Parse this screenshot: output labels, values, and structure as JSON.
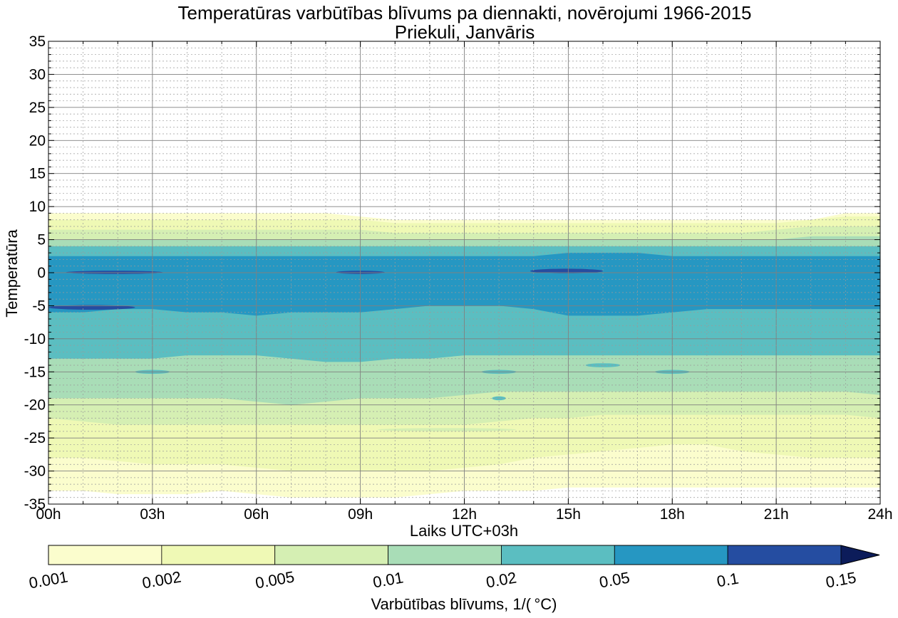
{
  "chart_data": {
    "type": "heatmap",
    "subtype": "filled-contour",
    "title": "Temperatūras varbūtības blīvums pa diennakti, novērojumi 1966-2015",
    "subtitle": "Priekuli, Janvāris",
    "xlabel": "Laiks UTC+03h",
    "ylabel": "Temperatūra",
    "xlim": [
      0,
      24
    ],
    "ylim": [
      -35,
      35
    ],
    "x_tick_labels": [
      "00h",
      "03h",
      "06h",
      "09h",
      "12h",
      "15h",
      "18h",
      "21h",
      "24h"
    ],
    "y_tick_labels": [
      "35",
      "30",
      "25",
      "20",
      "15",
      "10",
      "5",
      "0",
      "-5",
      "-10",
      "-15",
      "-20",
      "-25",
      "-30",
      "-35"
    ],
    "grid": true,
    "colorbar": {
      "label": "Varbūtības blīvums, 1/( °C)",
      "levels": [
        "0.001",
        "0.002",
        "0.005",
        "0.01",
        "0.02",
        "0.05",
        "0.1",
        "0.15"
      ],
      "colors": [
        "#fbfdcd",
        "#eff9b5",
        "#d5efb3",
        "#a9ddb7",
        "#5bbec1",
        "#2697c2",
        "#254da1",
        "#0c1c5a"
      ],
      "extend": "max"
    },
    "x": [
      0,
      1,
      2,
      3,
      4,
      5,
      6,
      7,
      8,
      9,
      10,
      11,
      12,
      13,
      14,
      15,
      16,
      17,
      18,
      19,
      20,
      21,
      22,
      23,
      24
    ],
    "bands": [
      {
        "level": 0,
        "color": "#fbfdcd",
        "lower": [
          -33,
          -33,
          -33.5,
          -33.5,
          -33.5,
          -33,
          -33.5,
          -34,
          -34,
          -34,
          -34,
          -33.5,
          -33,
          -33,
          -33,
          -32.5,
          -32.5,
          -32.5,
          -32.5,
          -32.5,
          -32.5,
          -32.5,
          -32.5,
          -32.5,
          -32.5
        ],
        "upper": [
          9,
          9,
          9,
          9,
          9,
          9,
          9,
          9,
          9,
          8.5,
          8,
          8,
          8,
          8,
          8,
          8,
          8,
          8,
          8,
          8,
          8,
          8,
          8,
          9,
          9
        ]
      },
      {
        "level": 1,
        "color": "#eff9b5",
        "lower": [
          -28,
          -28,
          -28.5,
          -29,
          -29,
          -29,
          -29.5,
          -30,
          -30,
          -30,
          -30,
          -30,
          -29.5,
          -29,
          -28,
          -27.5,
          -27,
          -26.5,
          -26,
          -26,
          -27,
          -27.5,
          -28,
          -28,
          -28
        ],
        "upper": [
          8,
          8,
          8,
          8,
          8,
          8,
          8,
          8,
          8,
          8,
          7.5,
          7.5,
          7.5,
          7.5,
          7.5,
          7.5,
          7.5,
          7.5,
          7.5,
          7.5,
          7.5,
          7.5,
          8,
          8.5,
          8.5
        ]
      },
      {
        "level": 2,
        "color": "#d5efb3",
        "lower": [
          -22,
          -22.5,
          -23,
          -23,
          -23,
          -23,
          -23,
          -23,
          -23,
          -23,
          -23,
          -23,
          -23,
          -22.5,
          -22,
          -22,
          -21.5,
          -21.5,
          -21.5,
          -21.5,
          -21.5,
          -21.5,
          -21.5,
          -21.5,
          -22
        ],
        "upper": [
          6.5,
          6.5,
          6.5,
          6.5,
          6.5,
          6.5,
          6.5,
          6.5,
          6.5,
          6.5,
          6,
          6,
          6,
          6,
          6,
          6,
          6,
          6,
          6,
          6,
          6,
          6.5,
          7,
          7,
          7
        ]
      },
      {
        "level": 3,
        "color": "#a9ddb7",
        "lower": [
          -19,
          -19,
          -19,
          -19,
          -19,
          -19,
          -19.5,
          -20,
          -19.5,
          -19,
          -19,
          -19,
          -18.5,
          -18,
          -18,
          -18,
          -18,
          -18,
          -18,
          -18,
          -18,
          -18,
          -18,
          -18,
          -18.5
        ],
        "upper": [
          5,
          5,
          5,
          5,
          5,
          5,
          5,
          5,
          5,
          5,
          5,
          5,
          5,
          5,
          5,
          5,
          5,
          5,
          5,
          5,
          5,
          5,
          5.5,
          5.5,
          5.5
        ]
      },
      {
        "level": 4,
        "color": "#5bbec1",
        "lower": [
          -13,
          -13,
          -13,
          -13,
          -12.5,
          -12.5,
          -12.5,
          -13,
          -13.5,
          -13.5,
          -13,
          -13,
          -12.5,
          -12.5,
          -12.5,
          -12.5,
          -12.5,
          -12.5,
          -12.5,
          -12.5,
          -12.5,
          -12.5,
          -12.5,
          -12.5,
          -12.5
        ],
        "upper": [
          4,
          4,
          4,
          4,
          4,
          4,
          4,
          4,
          4,
          4,
          4,
          4,
          4,
          4,
          4,
          4,
          4,
          4,
          4,
          4,
          4,
          4,
          4,
          4,
          4
        ]
      },
      {
        "level": 5,
        "color": "#2697c2",
        "lower": [
          -6,
          -6,
          -5.5,
          -5.5,
          -6,
          -6,
          -6.5,
          -6,
          -6,
          -6,
          -5.5,
          -5,
          -5,
          -5,
          -5.5,
          -6.5,
          -6.5,
          -6.5,
          -6,
          -5.5,
          -5.5,
          -5.5,
          -5.5,
          -5.5,
          -5.5
        ],
        "upper": [
          2.5,
          2.5,
          2.5,
          2.5,
          2.5,
          2.5,
          2.5,
          2.5,
          2.5,
          2.5,
          2.5,
          2.5,
          2.5,
          2.5,
          2.5,
          3,
          3,
          3,
          2.5,
          2.5,
          2.5,
          2.5,
          2.5,
          2.5,
          2.5
        ]
      }
    ],
    "blobs": [
      {
        "color": "#d5efb3",
        "x": [
          9.5,
          13.5
        ],
        "y": [
          -24,
          -23.5
        ]
      },
      {
        "color": "#5bbec1",
        "x": [
          2.5,
          3.5
        ],
        "y": [
          -15.3,
          -14.7
        ]
      },
      {
        "color": "#5bbec1",
        "x": [
          12.5,
          13.5
        ],
        "y": [
          -15.3,
          -14.7
        ]
      },
      {
        "color": "#5bbec1",
        "x": [
          15.5,
          16.5
        ],
        "y": [
          -14.3,
          -13.7
        ]
      },
      {
        "color": "#5bbec1",
        "x": [
          17.5,
          18.5
        ],
        "y": [
          -15.3,
          -14.7
        ]
      },
      {
        "color": "#5bbec1",
        "x": [
          12.8,
          13.2
        ],
        "y": [
          -19.3,
          -18.7
        ]
      },
      {
        "color": "#254da1",
        "x": [
          0.5,
          3.3
        ],
        "y": [
          -0.2,
          0.3
        ]
      },
      {
        "color": "#254da1",
        "x": [
          8.3,
          9.7
        ],
        "y": [
          -0.2,
          0.3
        ]
      },
      {
        "color": "#254da1",
        "x": [
          13.9,
          16.0
        ],
        "y": [
          -0.1,
          0.6
        ]
      },
      {
        "color": "#254da1",
        "x": [
          0,
          2.5
        ],
        "y": [
          -5.6,
          -4.9
        ]
      }
    ]
  }
}
